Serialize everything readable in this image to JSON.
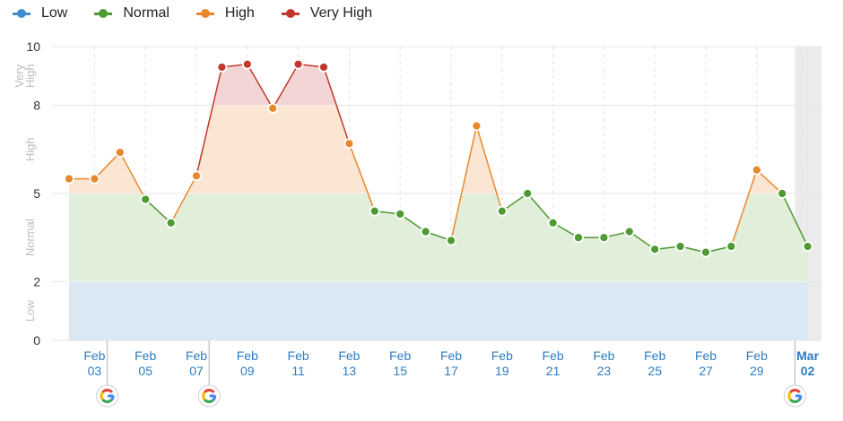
{
  "chart_data": {
    "type": "line",
    "title": "",
    "legend_position": "top-left",
    "levels": [
      {
        "name": "Low",
        "from": 0,
        "to": 2,
        "color": "#3f8fce",
        "band_color": "#dae8f3"
      },
      {
        "name": "Normal",
        "from": 2,
        "to": 5,
        "color": "#4e9a33",
        "band_color": "#e1eeda"
      },
      {
        "name": "High",
        "from": 5,
        "to": 8,
        "color": "#e8882a",
        "band_color": "#fbe6d3"
      },
      {
        "name": "Very High",
        "from": 8,
        "to": 10,
        "color": "#c0392b",
        "band_color": "#f4d5d5"
      }
    ],
    "y_ticks": [
      0,
      2,
      5,
      8,
      10
    ],
    "ylim": [
      0,
      10
    ],
    "y_band_labels": [
      {
        "text": "Low",
        "lines": [
          "Low"
        ]
      },
      {
        "text": "Normal",
        "lines": [
          "Normal"
        ]
      },
      {
        "text": "High",
        "lines": [
          "High"
        ]
      },
      {
        "text": "Very High",
        "lines": [
          "Very",
          "High"
        ]
      }
    ],
    "x_ticks": [
      {
        "month": "Feb",
        "day": "03",
        "index": 1
      },
      {
        "month": "Feb",
        "day": "05",
        "index": 3
      },
      {
        "month": "Feb",
        "day": "07",
        "index": 5
      },
      {
        "month": "Feb",
        "day": "09",
        "index": 7
      },
      {
        "month": "Feb",
        "day": "11",
        "index": 9
      },
      {
        "month": "Feb",
        "day": "13",
        "index": 11
      },
      {
        "month": "Feb",
        "day": "15",
        "index": 13
      },
      {
        "month": "Feb",
        "day": "17",
        "index": 15
      },
      {
        "month": "Feb",
        "day": "19",
        "index": 17
      },
      {
        "month": "Feb",
        "day": "21",
        "index": 19
      },
      {
        "month": "Feb",
        "day": "23",
        "index": 21
      },
      {
        "month": "Feb",
        "day": "25",
        "index": 23
      },
      {
        "month": "Feb",
        "day": "27",
        "index": 25
      },
      {
        "month": "Feb",
        "day": "29",
        "index": 27
      },
      {
        "month": "Mar",
        "day": "02",
        "index": 29
      }
    ],
    "x": [
      "Feb 02",
      "Feb 03",
      "Feb 04",
      "Feb 05",
      "Feb 06",
      "Feb 07",
      "Feb 08",
      "Feb 09",
      "Feb 10",
      "Feb 11",
      "Feb 12",
      "Feb 13",
      "Feb 14",
      "Feb 15",
      "Feb 16",
      "Feb 17",
      "Feb 18",
      "Feb 19",
      "Feb 20",
      "Feb 21",
      "Feb 22",
      "Feb 23",
      "Feb 24",
      "Feb 25",
      "Feb 26",
      "Feb 27",
      "Feb 28",
      "Feb 29",
      "Mar 01",
      "Mar 02"
    ],
    "values": [
      5.5,
      5.5,
      6.4,
      4.8,
      4.0,
      5.6,
      9.3,
      9.4,
      7.9,
      9.4,
      9.3,
      6.7,
      4.4,
      4.3,
      3.7,
      3.4,
      7.3,
      4.4,
      5.0,
      4.0,
      3.5,
      3.5,
      3.7,
      3.1,
      3.2,
      3.0,
      3.2,
      5.8,
      5.0,
      3.2
    ],
    "google_markers": [
      {
        "index": 1.5
      },
      {
        "index": 5.5
      },
      {
        "index": 28.5
      }
    ],
    "highlight_last_index": 29,
    "grid": true
  },
  "marker_icon": "google-g-icon"
}
